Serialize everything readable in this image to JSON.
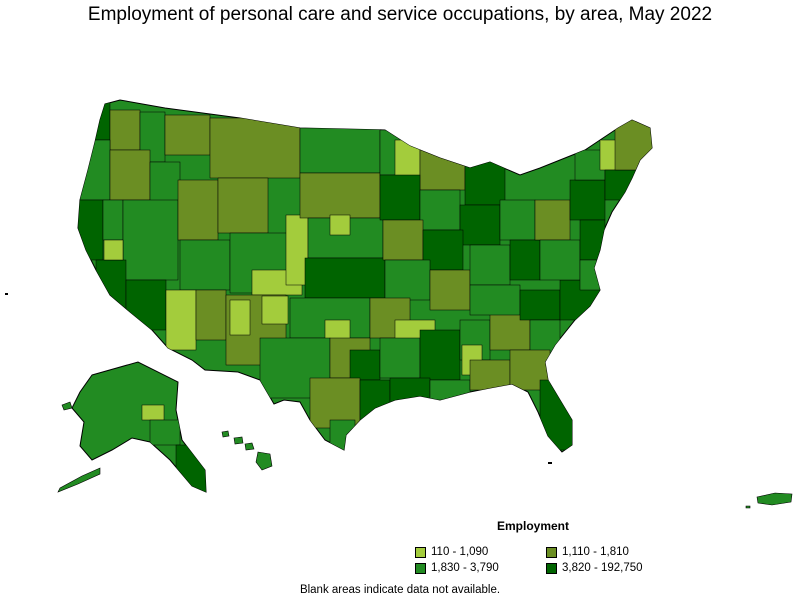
{
  "title": "Employment of personal care and service occupations, by area, May 2022",
  "legend": {
    "title": "Employment",
    "items": [
      {
        "label": "110 - 1,090",
        "color": "#a3cc3c"
      },
      {
        "label": "1,110 - 1,810",
        "color": "#6b8e23"
      },
      {
        "label": "1,830 - 3,790",
        "color": "#228b22"
      },
      {
        "label": "3,820 - 192,750",
        "color": "#006400"
      }
    ]
  },
  "footnote": "Blank areas indicate data not available.",
  "colors": {
    "border": "#000000",
    "background": "#ffffff"
  }
}
